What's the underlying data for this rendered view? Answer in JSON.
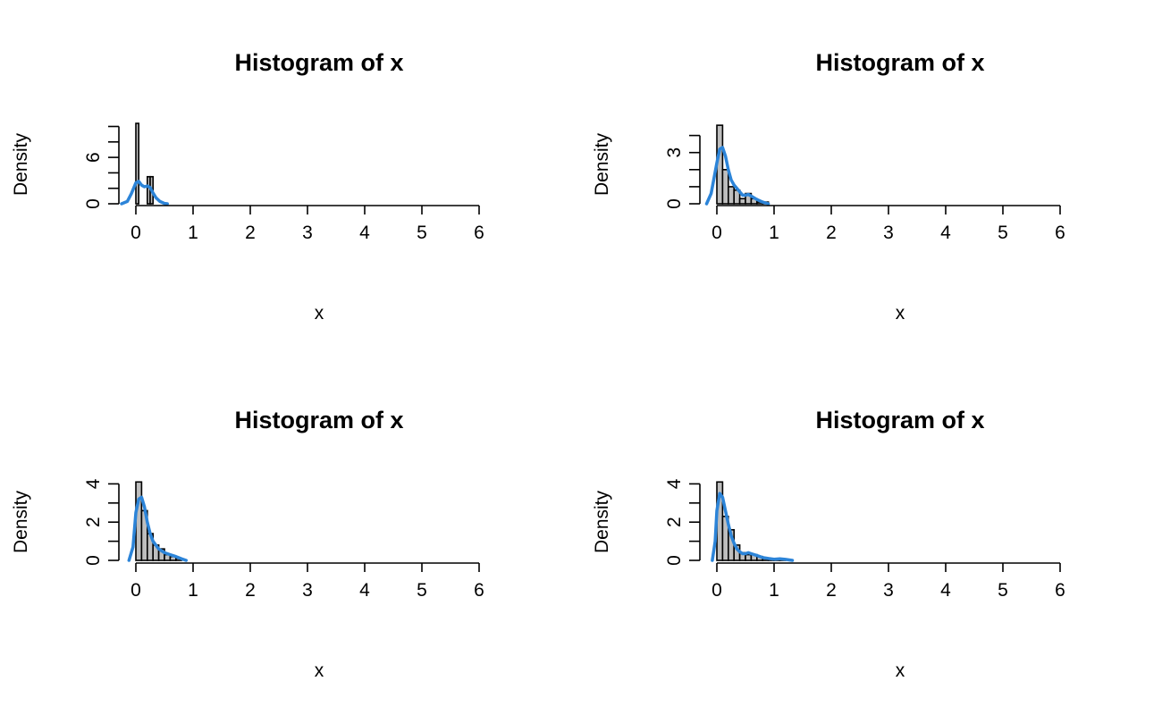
{
  "chart_data": [
    {
      "type": "bar",
      "title": "Histogram of x",
      "xlabel": "x",
      "ylabel": "Density",
      "xlim": [
        -0.2,
        6
      ],
      "ylim": [
        0,
        10.5
      ],
      "x_ticks": [
        "0",
        "1",
        "2",
        "3",
        "4",
        "5",
        "6"
      ],
      "y_ticks": [
        "0",
        "6"
      ],
      "y_minor_ticks": [
        0,
        2,
        4,
        6,
        8,
        10
      ],
      "bins": [
        {
          "x0": 0.0,
          "x1": 0.05,
          "density": 10.4
        },
        {
          "x0": 0.05,
          "x1": 0.1,
          "density": 0
        },
        {
          "x0": 0.1,
          "x1": 0.15,
          "density": 0
        },
        {
          "x0": 0.15,
          "x1": 0.2,
          "density": 0
        },
        {
          "x0": 0.2,
          "x1": 0.25,
          "density": 3.5
        },
        {
          "x0": 0.25,
          "x1": 0.3,
          "density": 3.5
        }
      ],
      "density_line": {
        "color": "#2c84d8",
        "x": [
          -0.25,
          -0.15,
          -0.08,
          0.0,
          0.05,
          0.1,
          0.15,
          0.2,
          0.25,
          0.3,
          0.35,
          0.42,
          0.5,
          0.55
        ],
        "y": [
          0.0,
          0.3,
          1.3,
          2.7,
          2.9,
          2.4,
          2.2,
          2.3,
          2.1,
          1.4,
          0.8,
          0.3,
          0.05,
          0.0
        ]
      }
    },
    {
      "type": "bar",
      "title": "Histogram of x",
      "xlabel": "x",
      "ylabel": "Density",
      "xlim": [
        -0.2,
        6
      ],
      "ylim": [
        0,
        4.6
      ],
      "x_ticks": [
        "0",
        "1",
        "2",
        "3",
        "4",
        "5",
        "6"
      ],
      "y_ticks": [
        "0",
        "3"
      ],
      "y_minor_ticks": [
        0,
        1,
        2,
        3,
        4
      ],
      "bins": [
        {
          "x0": 0.0,
          "x1": 0.1,
          "density": 4.6
        },
        {
          "x0": 0.1,
          "x1": 0.2,
          "density": 2.0
        },
        {
          "x0": 0.2,
          "x1": 0.3,
          "density": 1.0
        },
        {
          "x0": 0.3,
          "x1": 0.4,
          "density": 0.8
        },
        {
          "x0": 0.4,
          "x1": 0.5,
          "density": 0.3
        },
        {
          "x0": 0.5,
          "x1": 0.6,
          "density": 0.6
        },
        {
          "x0": 0.6,
          "x1": 0.7,
          "density": 0.3
        },
        {
          "x0": 0.7,
          "x1": 0.8,
          "density": 0.1
        },
        {
          "x0": 0.8,
          "x1": 0.9,
          "density": 0.1
        }
      ],
      "density_line": {
        "color": "#2c84d8",
        "x": [
          -0.18,
          -0.1,
          0.0,
          0.05,
          0.1,
          0.15,
          0.2,
          0.25,
          0.3,
          0.35,
          0.4,
          0.45,
          0.5,
          0.55,
          0.6,
          0.7,
          0.8,
          0.9
        ],
        "y": [
          0.0,
          0.6,
          2.4,
          3.2,
          3.3,
          2.8,
          2.0,
          1.4,
          1.1,
          0.9,
          0.7,
          0.5,
          0.5,
          0.55,
          0.45,
          0.25,
          0.1,
          0.0
        ]
      }
    },
    {
      "type": "bar",
      "title": "Histogram of x",
      "xlabel": "x",
      "ylabel": "Density",
      "xlim": [
        -0.2,
        6
      ],
      "ylim": [
        0,
        4.1
      ],
      "x_ticks": [
        "0",
        "1",
        "2",
        "3",
        "4",
        "5",
        "6"
      ],
      "y_ticks": [
        "0",
        "2",
        "4"
      ],
      "y_minor_ticks": [
        0,
        1,
        2,
        3,
        4
      ],
      "bins": [
        {
          "x0": 0.0,
          "x1": 0.1,
          "density": 4.1
        },
        {
          "x0": 0.1,
          "x1": 0.2,
          "density": 2.6
        },
        {
          "x0": 0.2,
          "x1": 0.3,
          "density": 1.4
        },
        {
          "x0": 0.3,
          "x1": 0.4,
          "density": 0.8
        },
        {
          "x0": 0.4,
          "x1": 0.5,
          "density": 0.6
        },
        {
          "x0": 0.5,
          "x1": 0.6,
          "density": 0.3
        },
        {
          "x0": 0.6,
          "x1": 0.7,
          "density": 0.2
        },
        {
          "x0": 0.7,
          "x1": 0.8,
          "density": 0.1
        }
      ],
      "density_line": {
        "color": "#2c84d8",
        "x": [
          -0.12,
          -0.05,
          0.0,
          0.05,
          0.1,
          0.15,
          0.2,
          0.25,
          0.3,
          0.35,
          0.4,
          0.5,
          0.6,
          0.7,
          0.8,
          0.88
        ],
        "y": [
          0.0,
          0.7,
          2.5,
          3.2,
          3.3,
          2.8,
          2.0,
          1.4,
          1.0,
          0.8,
          0.6,
          0.4,
          0.3,
          0.2,
          0.08,
          0.0
        ]
      }
    },
    {
      "type": "bar",
      "title": "Histogram of x",
      "xlabel": "x",
      "ylabel": "Density",
      "xlim": [
        -0.2,
        6
      ],
      "ylim": [
        0,
        4.1
      ],
      "x_ticks": [
        "0",
        "1",
        "2",
        "3",
        "4",
        "5",
        "6"
      ],
      "y_ticks": [
        "0",
        "2",
        "4"
      ],
      "y_minor_ticks": [
        0,
        1,
        2,
        3,
        4
      ],
      "bins": [
        {
          "x0": 0.0,
          "x1": 0.1,
          "density": 4.1
        },
        {
          "x0": 0.1,
          "x1": 0.2,
          "density": 2.3
        },
        {
          "x0": 0.2,
          "x1": 0.3,
          "density": 1.6
        },
        {
          "x0": 0.3,
          "x1": 0.4,
          "density": 0.8
        },
        {
          "x0": 0.4,
          "x1": 0.5,
          "density": 0.4
        },
        {
          "x0": 0.5,
          "x1": 0.6,
          "density": 0.3
        },
        {
          "x0": 0.6,
          "x1": 0.7,
          "density": 0.3
        },
        {
          "x0": 0.7,
          "x1": 0.8,
          "density": 0.2
        },
        {
          "x0": 0.8,
          "x1": 0.9,
          "density": 0.1
        },
        {
          "x0": 0.9,
          "x1": 1.0,
          "density": 0.1
        },
        {
          "x0": 1.0,
          "x1": 1.1,
          "density": 0.1
        },
        {
          "x0": 1.1,
          "x1": 1.2,
          "density": 0.05
        }
      ],
      "density_line": {
        "color": "#2c84d8",
        "x": [
          -0.08,
          -0.03,
          0.0,
          0.05,
          0.1,
          0.15,
          0.2,
          0.25,
          0.3,
          0.35,
          0.4,
          0.45,
          0.5,
          0.55,
          0.6,
          0.7,
          0.8,
          0.9,
          1.0,
          1.1,
          1.2,
          1.32
        ],
        "y": [
          0.0,
          1.0,
          2.6,
          3.5,
          3.3,
          2.6,
          1.9,
          1.3,
          0.9,
          0.6,
          0.45,
          0.35,
          0.35,
          0.4,
          0.35,
          0.25,
          0.15,
          0.1,
          0.06,
          0.08,
          0.05,
          0.0
        ]
      }
    }
  ]
}
